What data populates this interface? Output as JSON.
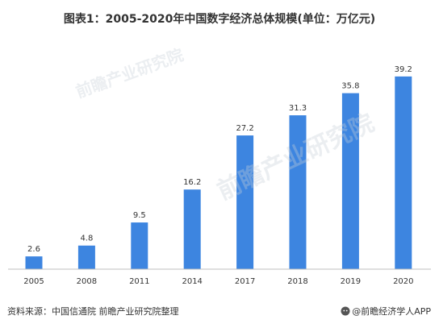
{
  "chart_data": {
    "type": "bar",
    "title": "图表1：2005-2020年中国数字经济总体规模(单位：万亿元)",
    "categories": [
      "2005",
      "2008",
      "2011",
      "2014",
      "2017",
      "2018",
      "2019",
      "2020"
    ],
    "values": [
      2.6,
      4.8,
      9.5,
      16.2,
      27.2,
      31.3,
      35.8,
      39.2
    ],
    "ylim": [
      0,
      40
    ],
    "grid": false,
    "legend": "none",
    "bar_color": "#3d85e0"
  },
  "footer": {
    "source": "资料来源：中国信通院 前瞻产业研究院整理",
    "brand": "@前瞻经济学人APP"
  },
  "watermark": {
    "text": "前瞻产业研究院"
  }
}
